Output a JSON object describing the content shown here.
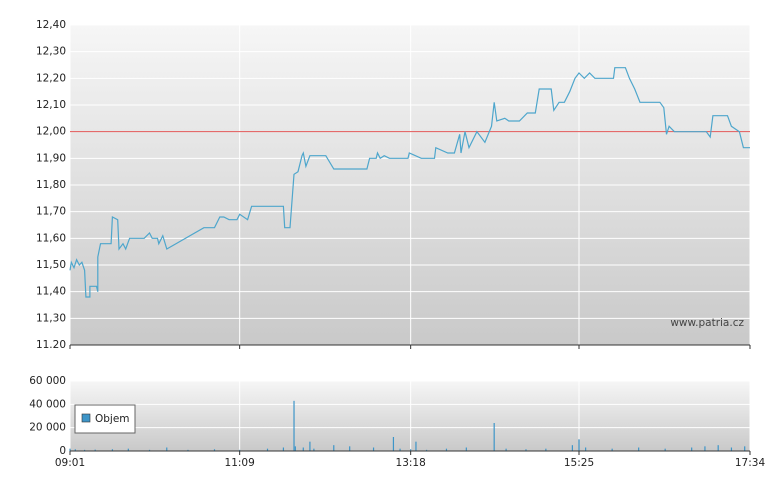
{
  "chart_data": [
    {
      "type": "line",
      "color": "#4ea6cc",
      "grid": true,
      "watermark": "www.patria.cz",
      "reference_line": 12.0,
      "reference_color": "#e05555",
      "xlim": [
        "09:01",
        "17:34"
      ],
      "ylim": [
        11.2,
        12.4
      ],
      "yticks": [
        {
          "value": 11.2,
          "label": "11.20"
        },
        {
          "value": 11.3,
          "label": "11,30"
        },
        {
          "value": 11.4,
          "label": "11,40"
        },
        {
          "value": 11.5,
          "label": "11,50"
        },
        {
          "value": 11.6,
          "label": "11,60"
        },
        {
          "value": 11.7,
          "label": "11,70"
        },
        {
          "value": 11.8,
          "label": "11,80"
        },
        {
          "value": 11.9,
          "label": "11,90"
        },
        {
          "value": 12.0,
          "label": "12,00"
        },
        {
          "value": 12.1,
          "label": "12,10"
        },
        {
          "value": 12.2,
          "label": "12,20"
        },
        {
          "value": 12.3,
          "label": "12,30"
        },
        {
          "value": 12.4,
          "label": "12,40"
        }
      ],
      "x": [
        "09:01",
        "09:02",
        "09:04",
        "09:06",
        "09:08",
        "09:10",
        "09:12",
        "09:13",
        "09:16",
        "09:16",
        "09:21",
        "09:22",
        "09:22",
        "09:24",
        "09:32",
        "09:33",
        "09:37",
        "09:38",
        "09:41",
        "09:43",
        "09:46",
        "09:57",
        "10:01",
        "10:03",
        "10:07",
        "10:08",
        "10:11",
        "10:14",
        "10:42",
        "10:50",
        "10:54",
        "10:57",
        "11:01",
        "11:07",
        "11:09",
        "11:15",
        "11:18",
        "11:42",
        "11:43",
        "11:47",
        "11:50",
        "11:53",
        "11:56",
        "11:57",
        "11:59",
        "12:02",
        "12:14",
        "12:20",
        "12:45",
        "12:47",
        "12:52",
        "12:53",
        "12:55",
        "12:58",
        "13:02",
        "13:16",
        "13:17",
        "13:26",
        "13:36",
        "13:37",
        "13:46",
        "13:51",
        "13:55",
        "13:56",
        "13:59",
        "14:02",
        "14:08",
        "14:14",
        "14:19",
        "14:21",
        "14:23",
        "14:29",
        "14:32",
        "14:40",
        "14:46",
        "14:52",
        "14:55",
        "15:04",
        "15:06",
        "15:10",
        "15:14",
        "15:18",
        "15:22",
        "15:25",
        "15:29",
        "15:33",
        "15:37",
        "15:51",
        "15:52",
        "16:00",
        "16:03",
        "16:07",
        "16:11",
        "16:26",
        "16:29",
        "16:31",
        "16:33",
        "16:37",
        "17:01",
        "17:04",
        "17:06",
        "17:17",
        "17:20",
        "17:26",
        "17:29",
        "17:34"
      ],
      "values": [
        11.48,
        11.51,
        11.49,
        11.52,
        11.5,
        11.51,
        11.48,
        11.38,
        11.38,
        11.42,
        11.42,
        11.4,
        11.53,
        11.58,
        11.58,
        11.68,
        11.67,
        11.56,
        11.58,
        11.56,
        11.6,
        11.6,
        11.62,
        11.6,
        11.6,
        11.58,
        11.61,
        11.56,
        11.64,
        11.64,
        11.68,
        11.68,
        11.67,
        11.67,
        11.69,
        11.67,
        11.72,
        11.72,
        11.64,
        11.64,
        11.84,
        11.85,
        11.91,
        11.92,
        11.87,
        11.91,
        11.91,
        11.86,
        11.86,
        11.9,
        11.9,
        11.92,
        11.9,
        11.91,
        11.9,
        11.9,
        11.92,
        11.9,
        11.9,
        11.94,
        11.92,
        11.92,
        11.99,
        11.92,
        12.0,
        11.94,
        12.0,
        11.96,
        12.02,
        12.11,
        12.04,
        12.05,
        12.04,
        12.04,
        12.07,
        12.07,
        12.16,
        12.16,
        12.08,
        12.11,
        12.11,
        12.15,
        12.2,
        12.22,
        12.2,
        12.22,
        12.2,
        12.2,
        12.24,
        12.24,
        12.2,
        12.16,
        12.11,
        12.11,
        12.09,
        11.99,
        12.02,
        12.0,
        12.0,
        11.98,
        12.06,
        12.06,
        12.02,
        12.0,
        11.94,
        11.94
      ]
    },
    {
      "type": "bar",
      "grid": true,
      "xlim": [
        "09:01",
        "17:34"
      ],
      "xticks": [
        "09:01",
        "11:09",
        "13:18",
        "15:25",
        "17:34"
      ],
      "ylim": [
        0,
        60000
      ],
      "yticks": [
        0,
        {
          "value": 20000,
          "label": "20 000"
        },
        {
          "value": 40000,
          "label": "40 000"
        },
        {
          "value": 60000,
          "label": "60 000"
        }
      ],
      "x": [
        "09:01",
        "09:05",
        "09:12",
        "09:20",
        "09:33",
        "09:45",
        "10:01",
        "10:14",
        "10:30",
        "10:50",
        "11:09",
        "11:30",
        "11:42",
        "11:50",
        "11:51",
        "11:57",
        "12:02",
        "12:05",
        "12:20",
        "12:32",
        "12:50",
        "13:05",
        "13:10",
        "13:18",
        "13:22",
        "13:30",
        "13:45",
        "14:00",
        "14:21",
        "14:30",
        "14:45",
        "15:00",
        "15:20",
        "15:25",
        "15:30",
        "15:50",
        "16:10",
        "16:30",
        "16:50",
        "17:00",
        "17:10",
        "17:20",
        "17:30"
      ],
      "series": [
        {
          "name": "Objem",
          "color": "#3d95c8",
          "values": [
            2000,
            1500,
            1000,
            1200,
            1500,
            2000,
            1000,
            3000,
            1000,
            1500,
            1000,
            2000,
            3000,
            43000,
            4000,
            3000,
            8000,
            2000,
            5000,
            4000,
            3000,
            12000,
            2000,
            1500,
            8000,
            1000,
            2000,
            3000,
            24000,
            2000,
            1500,
            2000,
            5000,
            10000,
            3000,
            2000,
            3000,
            2000,
            3000,
            4000,
            5000,
            3000,
            4000
          ]
        }
      ]
    }
  ]
}
